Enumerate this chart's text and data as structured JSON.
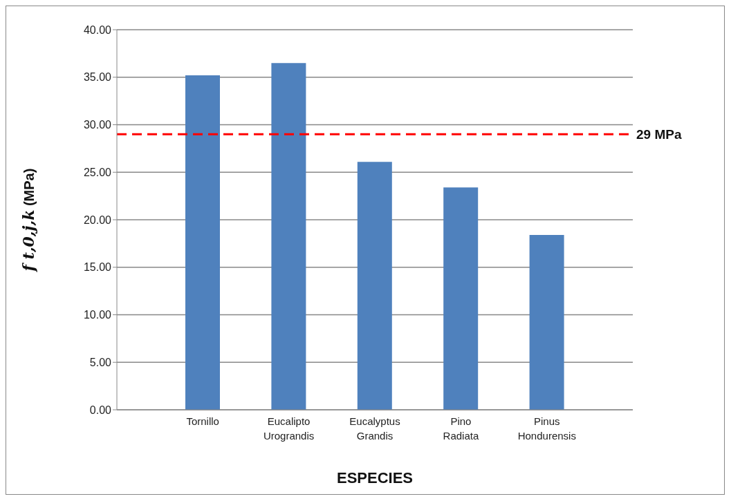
{
  "chart_data": {
    "type": "bar",
    "xlabel": "ESPECIES",
    "ylabel": "f t,0,j,k (MPa)",
    "categories": [
      "Tornillo",
      "Eucalipto Urograndis",
      "Eucalyptus Grandis",
      "Pino Radiata",
      "Pinus Hondurensis"
    ],
    "values": [
      35.2,
      36.5,
      26.1,
      23.4,
      18.4
    ],
    "color": "#4f81bd",
    "ylim": [
      0,
      40
    ],
    "yticks": [
      {
        "value": 0,
        "label": "0.00"
      },
      {
        "value": 5,
        "label": "5.00"
      },
      {
        "value": 10,
        "label": "10.00"
      },
      {
        "value": 15,
        "label": "15.00"
      },
      {
        "value": 20,
        "label": "20.00"
      },
      {
        "value": 25,
        "label": "25.00"
      },
      {
        "value": 30,
        "label": "30.00"
      },
      {
        "value": 35,
        "label": "35.00"
      },
      {
        "value": 40,
        "label": "40.00"
      }
    ],
    "ref_lines": [
      {
        "axis": "y",
        "value": 29,
        "label": "29 MPa",
        "color": "#ff0000",
        "line_style": "dashed"
      }
    ],
    "grid": "y"
  }
}
